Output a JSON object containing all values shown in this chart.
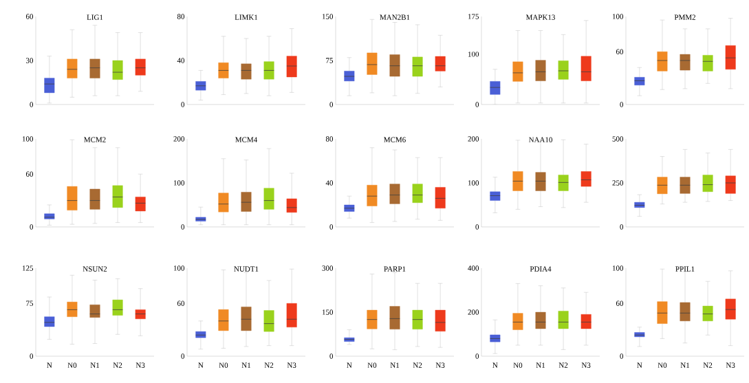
{
  "chart_data": [
    {
      "type": "box",
      "title": "LIG1",
      "colors": [
        "#4a5fd6",
        "#f08a24",
        "#a86a32",
        "#9ad21c",
        "#ee3a1c"
      ],
      "ylim": [
        0,
        60
      ],
      "yticks": [
        0,
        30,
        60
      ],
      "tick_labels": "y",
      "boxes": [
        {
          "low": 1,
          "q1": 8,
          "median": 14,
          "q3": 18,
          "high": 33
        },
        {
          "low": 5,
          "q1": 18,
          "median": 24,
          "q3": 31,
          "high": 51
        },
        {
          "low": 6,
          "q1": 18,
          "median": 25,
          "q3": 31,
          "high": 54
        },
        {
          "low": 6,
          "q1": 17,
          "median": 22,
          "q3": 30,
          "high": 49
        },
        {
          "low": 9,
          "q1": 20,
          "median": 25,
          "q3": 31,
          "high": 49
        }
      ]
    },
    {
      "type": "box",
      "title": "LIMK1",
      "colors": [
        "#4a5fd6",
        "#f08a24",
        "#a86a32",
        "#9ad21c",
        "#ee3a1c"
      ],
      "ylim": [
        0,
        80
      ],
      "yticks": [
        0,
        40,
        80
      ],
      "tick_labels": "y",
      "boxes": [
        {
          "low": 4,
          "q1": 13,
          "median": 17,
          "q3": 21,
          "high": 31
        },
        {
          "low": 9,
          "q1": 24,
          "median": 31,
          "q3": 38,
          "high": 62
        },
        {
          "low": 10,
          "q1": 23,
          "median": 31,
          "q3": 37,
          "high": 60
        },
        {
          "low": 8,
          "q1": 23,
          "median": 31,
          "q3": 39,
          "high": 62
        },
        {
          "low": 11,
          "q1": 25,
          "median": 35,
          "q3": 44,
          "high": 69
        }
      ]
    },
    {
      "type": "box",
      "title": "MAN2B1",
      "colors": [
        "#4a5fd6",
        "#f08a24",
        "#a86a32",
        "#9ad21c",
        "#ee3a1c"
      ],
      "ylim": [
        0,
        150
      ],
      "yticks": [
        0,
        75,
        150
      ],
      "tick_labels": "y",
      "boxes": [
        {
          "low": 15,
          "q1": 40,
          "median": 48,
          "q3": 57,
          "high": 80
        },
        {
          "low": 20,
          "q1": 51,
          "median": 68,
          "q3": 88,
          "high": 145
        },
        {
          "low": 15,
          "q1": 48,
          "median": 66,
          "q3": 85,
          "high": 140
        },
        {
          "low": 19,
          "q1": 48,
          "median": 66,
          "q3": 81,
          "high": 136
        },
        {
          "low": 30,
          "q1": 57,
          "median": 66,
          "q3": 82,
          "high": 118
        }
      ]
    },
    {
      "type": "box",
      "title": "MAPK13",
      "colors": [
        "#4a5fd6",
        "#f08a24",
        "#a86a32",
        "#9ad21c",
        "#ee3a1c"
      ],
      "ylim": [
        0,
        175
      ],
      "yticks": [
        0,
        100,
        175
      ],
      "tick_labels": "y",
      "boxes": [
        {
          "low": 0,
          "q1": 20,
          "median": 34,
          "q3": 46,
          "high": 70
        },
        {
          "low": 3,
          "q1": 46,
          "median": 63,
          "q3": 85,
          "high": 147
        },
        {
          "low": 3,
          "q1": 47,
          "median": 65,
          "q3": 88,
          "high": 147
        },
        {
          "low": 3,
          "q1": 50,
          "median": 67,
          "q3": 87,
          "high": 139
        },
        {
          "low": 3,
          "q1": 47,
          "median": 65,
          "q3": 96,
          "high": 167
        }
      ]
    },
    {
      "type": "box",
      "title": "PMM2",
      "colors": [
        "#4a5fd6",
        "#f08a24",
        "#a86a32",
        "#9ad21c",
        "#ee3a1c"
      ],
      "ylim": [
        0,
        100
      ],
      "yticks": [
        0,
        60,
        100
      ],
      "tick_labels": "y",
      "boxes": [
        {
          "low": 10,
          "q1": 22,
          "median": 27,
          "q3": 31,
          "high": 42
        },
        {
          "low": 17,
          "q1": 38,
          "median": 50,
          "q3": 60,
          "high": 96
        },
        {
          "low": 18,
          "q1": 39,
          "median": 50,
          "q3": 57,
          "high": 86
        },
        {
          "low": 24,
          "q1": 38,
          "median": 49,
          "q3": 56,
          "high": 86
        },
        {
          "low": 18,
          "q1": 40,
          "median": 53,
          "q3": 67,
          "high": 98
        }
      ]
    },
    {
      "type": "box",
      "title": "MCM2",
      "colors": [
        "#4a5fd6",
        "#f08a24",
        "#a86a32",
        "#9ad21c",
        "#ee3a1c"
      ],
      "ylim": [
        0,
        100
      ],
      "yticks": [
        0,
        60,
        100
      ],
      "tick_labels": "y",
      "boxes": [
        {
          "low": 2,
          "q1": 9,
          "median": 11,
          "q3": 15,
          "high": 25
        },
        {
          "low": 3,
          "q1": 19,
          "median": 30,
          "q3": 46,
          "high": 99
        },
        {
          "low": 4,
          "q1": 20,
          "median": 30,
          "q3": 43,
          "high": 90
        },
        {
          "low": 5,
          "q1": 22,
          "median": 34,
          "q3": 47,
          "high": 90
        },
        {
          "low": 5,
          "q1": 18,
          "median": 27,
          "q3": 34,
          "high": 60
        }
      ]
    },
    {
      "type": "box",
      "title": "MCM4",
      "colors": [
        "#4a5fd6",
        "#f08a24",
        "#a86a32",
        "#9ad21c",
        "#ee3a1c"
      ],
      "ylim": [
        0,
        200
      ],
      "yticks": [
        0,
        100,
        200
      ],
      "tick_labels": "y",
      "boxes": [
        {
          "low": 5,
          "q1": 13,
          "median": 17,
          "q3": 22,
          "high": 45
        },
        {
          "low": 5,
          "q1": 34,
          "median": 52,
          "q3": 77,
          "high": 155
        },
        {
          "low": 5,
          "q1": 35,
          "median": 56,
          "q3": 79,
          "high": 152
        },
        {
          "low": 5,
          "q1": 40,
          "median": 60,
          "q3": 88,
          "high": 178
        },
        {
          "low": 5,
          "q1": 33,
          "median": 44,
          "q3": 64,
          "high": 122
        }
      ]
    },
    {
      "type": "box",
      "title": "MCM6",
      "colors": [
        "#4a5fd6",
        "#f08a24",
        "#a86a32",
        "#9ad21c",
        "#ee3a1c"
      ],
      "ylim": [
        0,
        80
      ],
      "yticks": [
        0,
        40,
        80
      ],
      "tick_labels": "y",
      "boxes": [
        {
          "low": 8,
          "q1": 14,
          "median": 17,
          "q3": 20,
          "high": 28
        },
        {
          "low": 4,
          "q1": 19,
          "median": 28,
          "q3": 38,
          "high": 72
        },
        {
          "low": 5,
          "q1": 21,
          "median": 29,
          "q3": 39,
          "high": 70
        },
        {
          "low": 7,
          "q1": 22,
          "median": 29,
          "q3": 39,
          "high": 63
        },
        {
          "low": 6,
          "q1": 17,
          "median": 26,
          "q3": 36,
          "high": 63
        }
      ]
    },
    {
      "type": "box",
      "title": "NAA10",
      "colors": [
        "#4a5fd6",
        "#f08a24",
        "#a86a32",
        "#9ad21c",
        "#ee3a1c"
      ],
      "ylim": [
        0,
        200
      ],
      "yticks": [
        0,
        100,
        200
      ],
      "tick_labels": "y",
      "boxes": [
        {
          "low": 32,
          "q1": 60,
          "median": 71,
          "q3": 80,
          "high": 113
        },
        {
          "low": 40,
          "q1": 82,
          "median": 104,
          "q3": 126,
          "high": 197
        },
        {
          "low": 46,
          "q1": 82,
          "median": 104,
          "q3": 124,
          "high": 195
        },
        {
          "low": 44,
          "q1": 82,
          "median": 101,
          "q3": 118,
          "high": 198
        },
        {
          "low": 56,
          "q1": 92,
          "median": 107,
          "q3": 126,
          "high": 188
        }
      ]
    },
    {
      "type": "box",
      "colors": [
        "#4a5fd6",
        "#f08a24",
        "#a86a32",
        "#9ad21c",
        "#ee3a1c"
      ],
      "ylim": [
        0,
        500
      ],
      "yticks": [
        0,
        250,
        500
      ],
      "tick_labels": "y",
      "boxes": [
        {
          "low": 60,
          "q1": 110,
          "median": 123,
          "q3": 140,
          "high": 183
        },
        {
          "low": 130,
          "q1": 188,
          "median": 237,
          "q3": 283,
          "high": 400
        },
        {
          "low": 140,
          "q1": 190,
          "median": 237,
          "q3": 283,
          "high": 440
        },
        {
          "low": 145,
          "q1": 200,
          "median": 240,
          "q3": 295,
          "high": 420
        },
        {
          "low": 150,
          "q1": 190,
          "median": 250,
          "q3": 290,
          "high": 440
        }
      ]
    },
    {
      "type": "box",
      "title": "NSUN2",
      "categories": [
        "N",
        "N0",
        "N1",
        "N2",
        "N3"
      ],
      "colors": [
        "#4a5fd6",
        "#f08a24",
        "#a86a32",
        "#9ad21c",
        "#ee3a1c"
      ],
      "ylim": [
        0,
        125
      ],
      "yticks": [
        0,
        75,
        125
      ],
      "boxes": [
        {
          "low": 24,
          "q1": 42,
          "median": 48,
          "q3": 56,
          "high": 84
        },
        {
          "low": 17,
          "q1": 56,
          "median": 66,
          "q3": 77,
          "high": 115
        },
        {
          "low": 18,
          "q1": 55,
          "median": 60,
          "q3": 73,
          "high": 108
        },
        {
          "low": 31,
          "q1": 58,
          "median": 66,
          "q3": 80,
          "high": 110
        },
        {
          "low": 29,
          "q1": 53,
          "median": 60,
          "q3": 66,
          "high": 96
        }
      ]
    },
    {
      "type": "box",
      "title": "NUDT1",
      "categories": [
        "N",
        "N0",
        "N1",
        "N2",
        "N3"
      ],
      "colors": [
        "#4a5fd6",
        "#f08a24",
        "#a86a32",
        "#9ad21c",
        "#ee3a1c"
      ],
      "ylim": [
        0,
        100
      ],
      "yticks": [
        0,
        60,
        100
      ],
      "boxes": [
        {
          "low": 8,
          "q1": 21,
          "median": 24,
          "q3": 28,
          "high": 40
        },
        {
          "low": 9,
          "q1": 29,
          "median": 40,
          "q3": 53,
          "high": 98
        },
        {
          "low": 11,
          "q1": 29,
          "median": 42,
          "q3": 56,
          "high": 95
        },
        {
          "low": 12,
          "q1": 28,
          "median": 37,
          "q3": 52,
          "high": 86
        },
        {
          "low": 12,
          "q1": 33,
          "median": 42,
          "q3": 60,
          "high": 99
        }
      ]
    },
    {
      "type": "box",
      "title": "PARP1",
      "categories": [
        "N",
        "N0",
        "N1",
        "N2",
        "N3"
      ],
      "colors": [
        "#4a5fd6",
        "#f08a24",
        "#a86a32",
        "#9ad21c",
        "#ee3a1c"
      ],
      "ylim": [
        0,
        300
      ],
      "yticks": [
        0,
        150,
        300
      ],
      "boxes": [
        {
          "low": 40,
          "q1": 50,
          "median": 57,
          "q3": 63,
          "high": 90
        },
        {
          "low": 25,
          "q1": 93,
          "median": 125,
          "q3": 157,
          "high": 280
        },
        {
          "low": 22,
          "q1": 92,
          "median": 128,
          "q3": 170,
          "high": 285
        },
        {
          "low": 33,
          "q1": 92,
          "median": 125,
          "q3": 157,
          "high": 248
        },
        {
          "low": 30,
          "q1": 85,
          "median": 115,
          "q3": 157,
          "high": 248
        }
      ]
    },
    {
      "type": "box",
      "title": "PDIA4",
      "categories": [
        "N",
        "N0",
        "N1",
        "N2",
        "N3"
      ],
      "colors": [
        "#4a5fd6",
        "#f08a24",
        "#a86a32",
        "#9ad21c",
        "#ee3a1c"
      ],
      "ylim": [
        0,
        400
      ],
      "yticks": [
        0,
        200,
        400
      ],
      "boxes": [
        {
          "low": 12,
          "q1": 65,
          "median": 80,
          "q3": 97,
          "high": 165
        },
        {
          "low": 50,
          "q1": 120,
          "median": 155,
          "q3": 195,
          "high": 330
        },
        {
          "low": 50,
          "q1": 125,
          "median": 155,
          "q3": 200,
          "high": 320
        },
        {
          "low": 30,
          "q1": 125,
          "median": 155,
          "q3": 205,
          "high": 310
        },
        {
          "low": 50,
          "q1": 125,
          "median": 155,
          "q3": 190,
          "high": 290
        }
      ]
    },
    {
      "type": "box",
      "title": "PPIL1",
      "categories": [
        "N",
        "N0",
        "N1",
        "N2",
        "N3"
      ],
      "colors": [
        "#4a5fd6",
        "#f08a24",
        "#a86a32",
        "#9ad21c",
        "#ee3a1c"
      ],
      "ylim": [
        0,
        100
      ],
      "yticks": [
        0,
        60,
        100
      ],
      "boxes": [
        {
          "low": 11,
          "q1": 22,
          "median": 24,
          "q3": 27,
          "high": 33
        },
        {
          "low": 20,
          "q1": 37,
          "median": 49,
          "q3": 62,
          "high": 99
        },
        {
          "low": 15,
          "q1": 40,
          "median": 49,
          "q3": 61,
          "high": 96
        },
        {
          "low": 24,
          "q1": 40,
          "median": 48,
          "q3": 57,
          "high": 85
        },
        {
          "low": 12,
          "q1": 42,
          "median": 53,
          "q3": 65,
          "high": 97
        }
      ]
    }
  ]
}
